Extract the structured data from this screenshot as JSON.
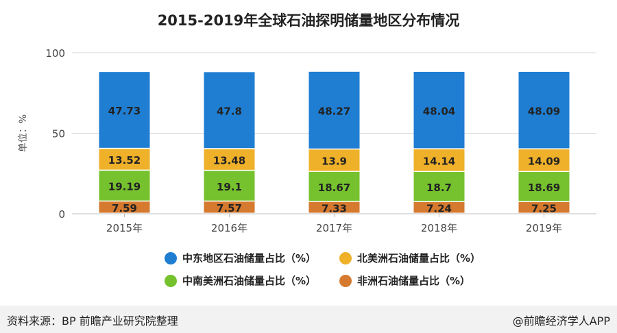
{
  "chart_data": {
    "type": "bar",
    "stacked": true,
    "title": "2015-2019年全球石油探明储量地区分布情况",
    "ylabel": "单位：%",
    "xlabel": "",
    "ylim": [
      0,
      100
    ],
    "yticks": [
      0,
      50,
      100
    ],
    "categories": [
      "2015年",
      "2016年",
      "2017年",
      "2018年",
      "2019年"
    ],
    "series": [
      {
        "name": "非洲石油储量占比（%）",
        "color": "#d57a2f",
        "values": [
          7.59,
          7.57,
          7.33,
          7.24,
          7.25
        ],
        "labels": [
          "7.59",
          "7.57",
          "7.33",
          "7.24",
          "7.25"
        ]
      },
      {
        "name": "中南美洲石油储量占比（%）",
        "color": "#76c22e",
        "values": [
          19.19,
          19.1,
          18.67,
          18.7,
          18.69
        ],
        "labels": [
          "19.19",
          "19.1",
          "18.67",
          "18.7",
          "18.69"
        ]
      },
      {
        "name": "北美洲石油储量占比（%）",
        "color": "#efb12a",
        "values": [
          13.52,
          13.48,
          13.9,
          14.14,
          14.09
        ],
        "labels": [
          "13.52",
          "13.48",
          "13.9",
          "14.14",
          "14.09"
        ]
      },
      {
        "name": "中东地区石油储量占比（%）",
        "color": "#1f7ed2",
        "values": [
          47.73,
          47.8,
          48.27,
          48.04,
          48.09
        ],
        "labels": [
          "47.73",
          "47.8",
          "48.27",
          "48.04",
          "48.09"
        ]
      }
    ],
    "legend_position": "bottom"
  },
  "legend": [
    {
      "label": "中东地区石油储量占比（%）",
      "color": "#1f7ed2"
    },
    {
      "label": "北美洲石油储量占比（%）",
      "color": "#efb12a"
    },
    {
      "label": "中南美洲石油储量占比（%）",
      "color": "#76c22e"
    },
    {
      "label": "非洲石油储量占比（%）",
      "color": "#d57a2f"
    }
  ],
  "footer": {
    "source": "资料来源：BP 前瞻产业研究院整理",
    "brand": "@前瞻经济学人APP"
  }
}
